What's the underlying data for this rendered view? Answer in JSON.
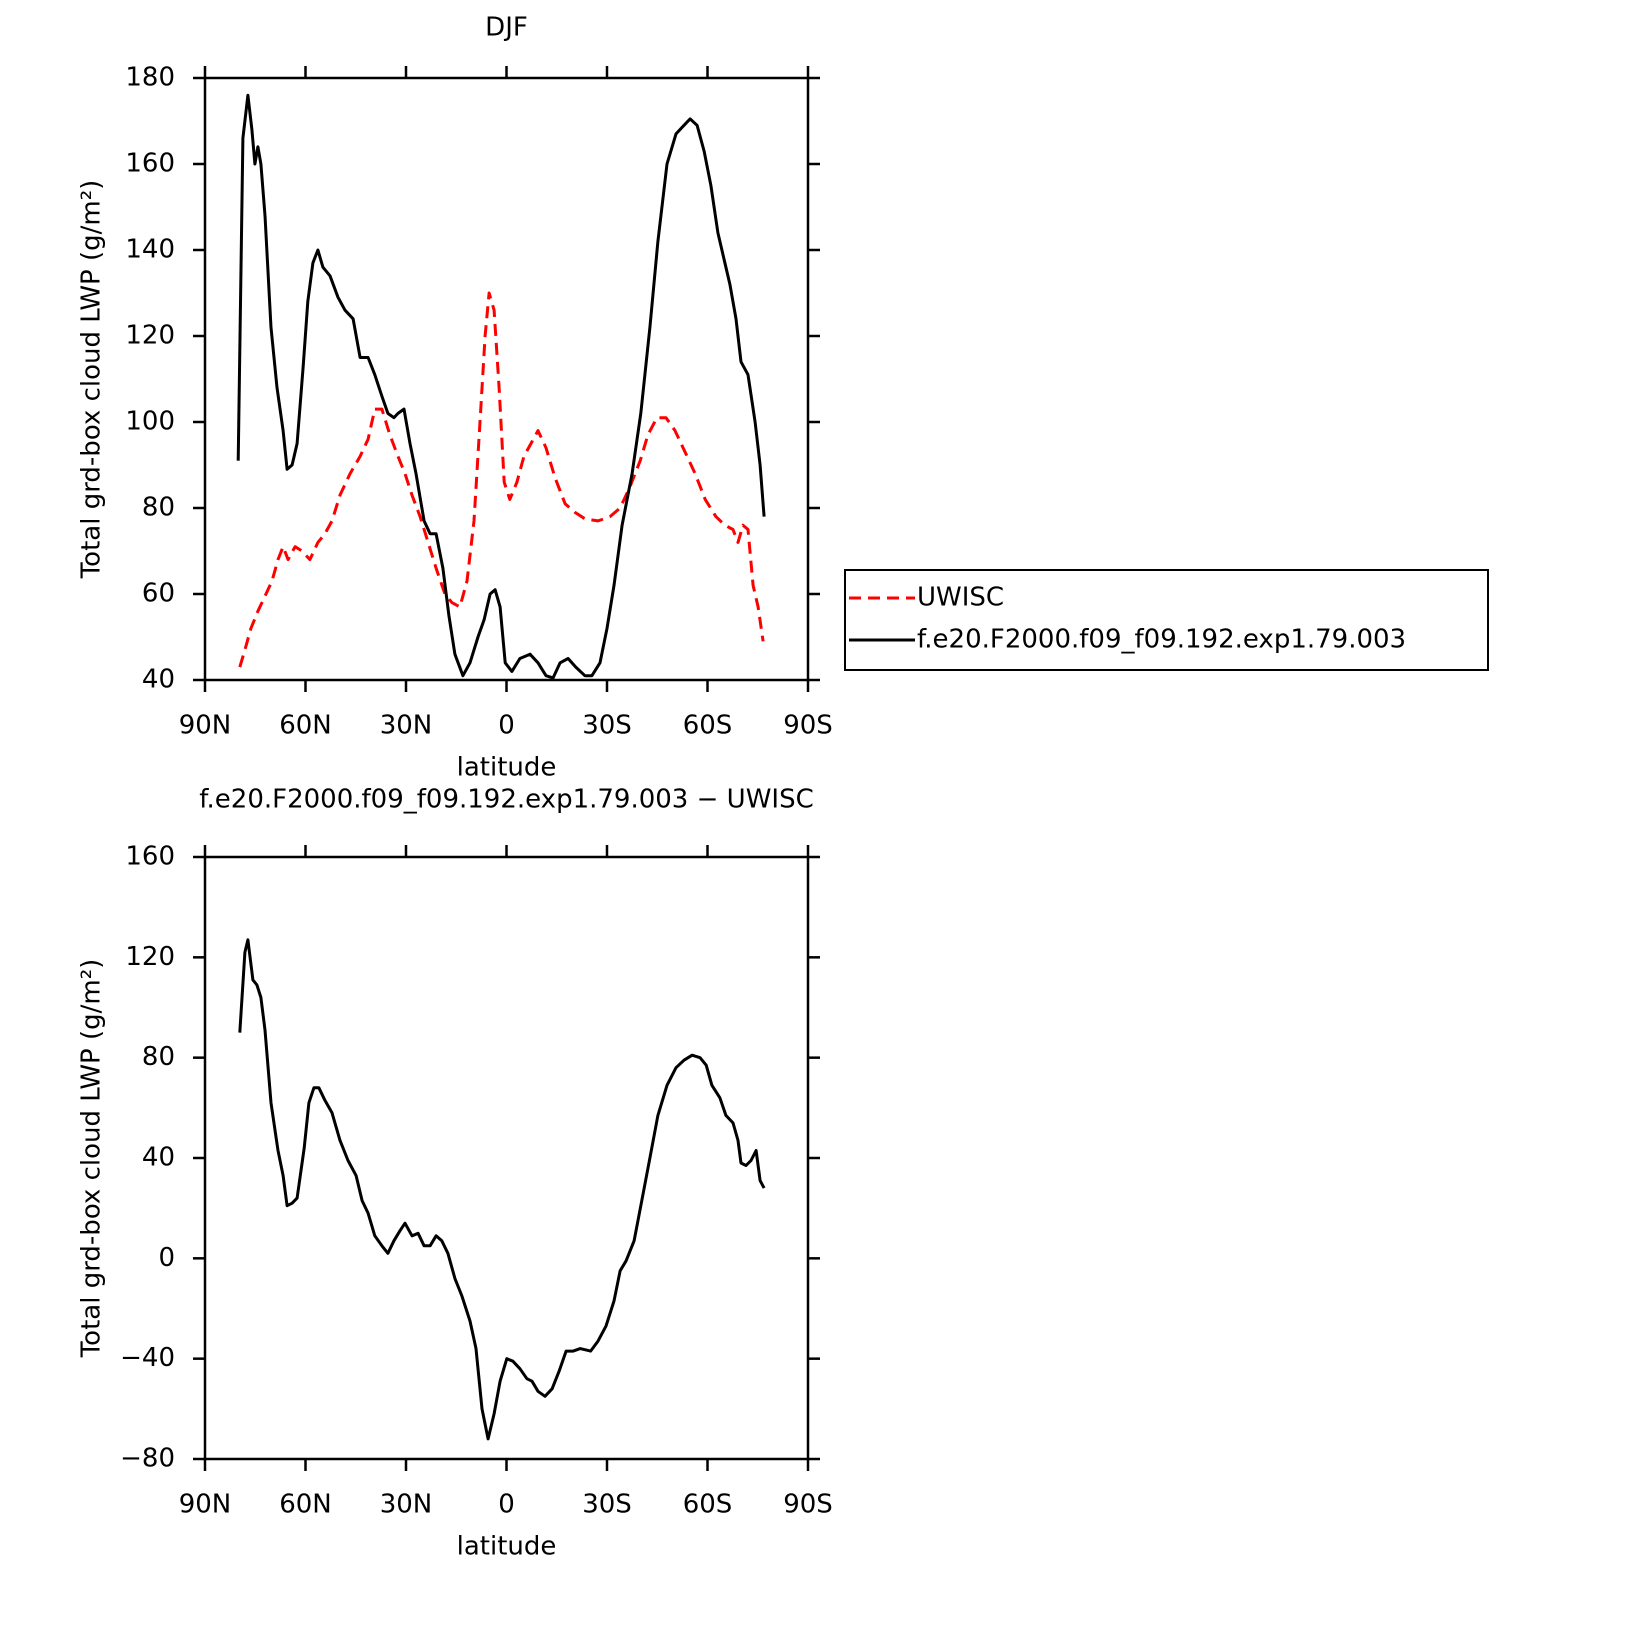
{
  "chart_data": [
    {
      "type": "line",
      "title": "DJF",
      "xlabel": "latitude",
      "ylabel": "Total grd-box cloud LWP (g/m²)",
      "xlim": [
        90,
        -90
      ],
      "xticks": [
        {
          "value": 90,
          "label": "90N"
        },
        {
          "value": 60,
          "label": "60N"
        },
        {
          "value": 30,
          "label": "30N"
        },
        0,
        {
          "value": -30,
          "label": "30S"
        },
        {
          "value": -60,
          "label": "60S"
        },
        {
          "value": -90,
          "label": "90S"
        }
      ],
      "ylim": [
        40,
        180
      ],
      "yticks": [
        40,
        60,
        80,
        100,
        120,
        140,
        160,
        180
      ],
      "legend": "right",
      "series": [
        {
          "name": "UWISC",
          "color": "#ff0000",
          "dashed": true,
          "x": [
            79.6,
            78.1,
            76.3,
            74.2,
            72.4,
            70,
            68.2,
            66.7,
            65.2,
            63.1,
            61,
            58.7,
            56.3,
            54.2,
            52.1,
            49.7,
            46.7,
            43.7,
            41.3,
            39.3,
            37.2,
            34.8,
            32.4,
            30.3,
            28.2,
            25.8,
            23.4,
            21,
            18.4,
            16.3,
            13.9,
            11.8,
            9.7,
            7.9,
            6.4,
            5.2,
            3.7,
            2.2,
            0.7,
            -1,
            -3.1,
            -5.2,
            -7.3,
            -9.4,
            -11.8,
            -14.5,
            -17.5,
            -20.4,
            -23.4,
            -27.3,
            -30.9,
            -33.9,
            -36.9,
            -39.9,
            -42.2,
            -44.9,
            -47.6,
            -50.3,
            -53.3,
            -56.3,
            -59.3,
            -62.5,
            -65.2,
            -67.6,
            -69.1,
            -70.6,
            -72.1,
            -73.6,
            -75.1,
            -76.6
          ],
          "values": [
            43,
            47,
            52,
            56,
            59,
            63,
            68,
            71,
            68,
            71,
            70,
            68,
            72,
            74,
            77,
            83,
            88,
            92,
            96,
            103,
            103,
            97,
            92,
            88,
            83,
            78,
            72,
            66,
            60,
            58,
            57,
            63,
            77,
            100,
            120,
            130,
            126,
            108,
            86,
            82,
            86,
            92,
            95,
            98,
            94,
            87,
            81,
            79,
            77.5,
            77,
            78,
            80,
            85,
            91,
            97,
            101,
            101,
            98,
            93,
            88,
            82,
            78,
            76,
            75,
            72,
            76,
            75,
            62,
            57,
            49
          ]
        },
        {
          "name": "f.e20.F2000.f09_f09.192.exp1.79.003",
          "color": "#000000",
          "dashed": false,
          "x": [
            80.1,
            78.7,
            77.2,
            76,
            75.1,
            74.2,
            73.3,
            72.1,
            70.3,
            68.5,
            66.7,
            65.5,
            64,
            62.5,
            60.7,
            59.3,
            57.8,
            56.3,
            54.8,
            52.7,
            50.3,
            48.2,
            45.8,
            43.7,
            41.3,
            39.3,
            37.2,
            35.4,
            33.6,
            32.4,
            30.6,
            28.8,
            27,
            24.6,
            22.8,
            21,
            19,
            17.2,
            15.4,
            13,
            10.9,
            8.5,
            6.7,
            4.9,
            3.4,
            1.9,
            0.4,
            -1.6,
            -4,
            -7,
            -9.4,
            -11.8,
            -13.9,
            -16,
            -18.4,
            -20.7,
            -23.4,
            -25.5,
            -27.9,
            -30,
            -32.1,
            -34.5,
            -37.5,
            -40.1,
            -42.8,
            -45.2,
            -47.9,
            -50.6,
            -53,
            -54.8,
            -56.9,
            -59,
            -61,
            -63.1,
            -64.9,
            -66.7,
            -68.5,
            -70,
            -72.1,
            -74.2,
            -75.7,
            -76.9
          ],
          "values": [
            91,
            166,
            176,
            168,
            160,
            164,
            160,
            148,
            122,
            108,
            98,
            89,
            90,
            95,
            113,
            128,
            137,
            140,
            136,
            134,
            129,
            126,
            124,
            115,
            115,
            111,
            106,
            102,
            101,
            102,
            103,
            95,
            88,
            77,
            74,
            74,
            66,
            55,
            46,
            41,
            44,
            50,
            54,
            60,
            61,
            57,
            44,
            42,
            45,
            46,
            44,
            41,
            40.5,
            44,
            45,
            43,
            41,
            41,
            44,
            52,
            62,
            76,
            88,
            102,
            122,
            142,
            160,
            167,
            169,
            170.5,
            169,
            163,
            155,
            144,
            138,
            132,
            124,
            114,
            111,
            100,
            90,
            78
          ]
        }
      ]
    },
    {
      "type": "line",
      "title": "f.e20.F2000.f09_f09.192.exp1.79.003 − UWISC",
      "xlabel": "latitude",
      "ylabel": "Total grd-box cloud LWP (g/m²)",
      "xlim": [
        90,
        -90
      ],
      "xticks": [
        {
          "value": 90,
          "label": "90N"
        },
        {
          "value": 60,
          "label": "60N"
        },
        {
          "value": 30,
          "label": "30N"
        },
        0,
        {
          "value": -30,
          "label": "30S"
        },
        {
          "value": -60,
          "label": "60S"
        },
        {
          "value": -90,
          "label": "90S"
        }
      ],
      "ylim": [
        -80,
        160
      ],
      "yticks": [
        {
          "value": -80,
          "label": "−80"
        },
        {
          "value": -40,
          "label": "−40"
        },
        0,
        40,
        80,
        120,
        160
      ],
      "color": "#000000",
      "x": [
        79.6,
        78.1,
        77.2,
        75.7,
        74.5,
        73.3,
        72.1,
        70.3,
        68.2,
        66.7,
        65.5,
        64,
        62.5,
        60.4,
        59,
        57.5,
        56,
        54.2,
        52.1,
        49.7,
        47.3,
        44.9,
        43.1,
        41.3,
        39.3,
        37.2,
        35.4,
        33.6,
        31.8,
        30.3,
        28.2,
        26.4,
        24.6,
        22.8,
        21,
        19.3,
        17.5,
        15.4,
        13.3,
        10.9,
        9.1,
        7.3,
        5.5,
        3.7,
        1.9,
        -0.1,
        -1.9,
        -4,
        -6.1,
        -7.6,
        -9.4,
        -11.5,
        -13.6,
        -15.7,
        -17.8,
        -19.9,
        -22,
        -25.1,
        -27.3,
        -29.7,
        -32.1,
        -33.9,
        -35.7,
        -38.1,
        -40.4,
        -42.8,
        -45.2,
        -47.9,
        -50.6,
        -53,
        -55.4,
        -57.8,
        -59.6,
        -61.3,
        -63.7,
        -65.5,
        -67.6,
        -69.1,
        -70,
        -71.5,
        -73,
        -74.5,
        -75.7,
        -76.9
      ],
      "values": [
        90,
        122,
        127,
        111,
        109,
        104,
        91,
        62,
        43,
        33,
        21,
        22,
        24,
        44,
        62,
        68,
        68,
        63,
        58,
        47,
        39,
        33,
        23,
        18,
        9,
        5,
        2,
        7,
        11,
        14,
        9,
        10,
        5,
        5,
        9,
        7,
        2,
        -8,
        -15,
        -25,
        -36,
        -60,
        -72,
        -62,
        -49,
        -40,
        -41,
        -44,
        -48,
        -49,
        -53,
        -55,
        -52,
        -45,
        -37,
        -37,
        -36,
        -37,
        -33,
        -27,
        -17,
        -5,
        -1,
        7,
        23,
        40,
        57,
        69,
        76,
        79,
        81,
        80,
        77,
        69,
        64,
        57,
        54,
        47,
        38,
        37,
        39,
        43,
        31,
        28
      ]
    }
  ]
}
